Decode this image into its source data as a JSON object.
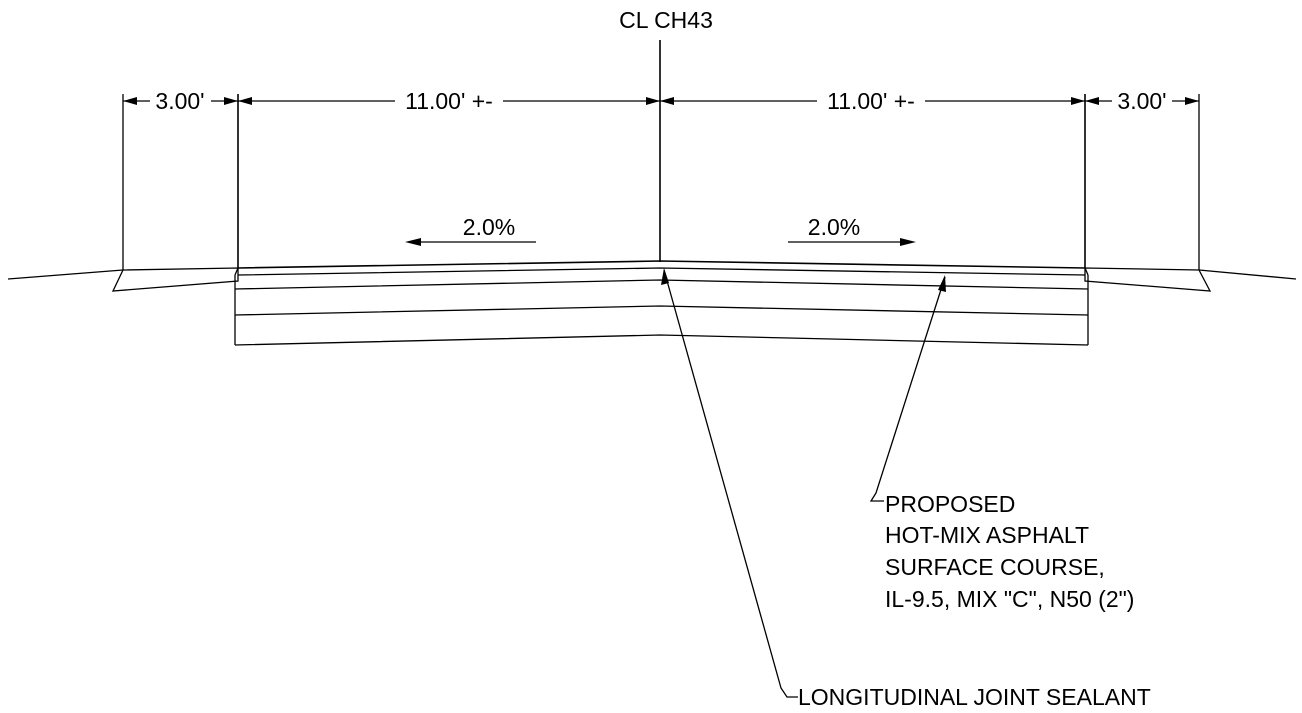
{
  "centerline": {
    "label": "CL CH43"
  },
  "dimensions": {
    "left_shoulder": "3.00'",
    "left_lane": "11.00' +-",
    "right_lane": "11.00' +-",
    "right_shoulder": "3.00'"
  },
  "slopes": {
    "left": "2.0%",
    "right": "2.0%"
  },
  "callouts": {
    "surface": {
      "lines": [
        "PROPOSED",
        "HOT-MIX ASPHALT",
        "SURFACE COURSE,",
        "IL-9.5, MIX \"C\", N50 (2\")"
      ]
    },
    "joint": {
      "label": "LONGITUDINAL JOINT SEALANT"
    }
  }
}
